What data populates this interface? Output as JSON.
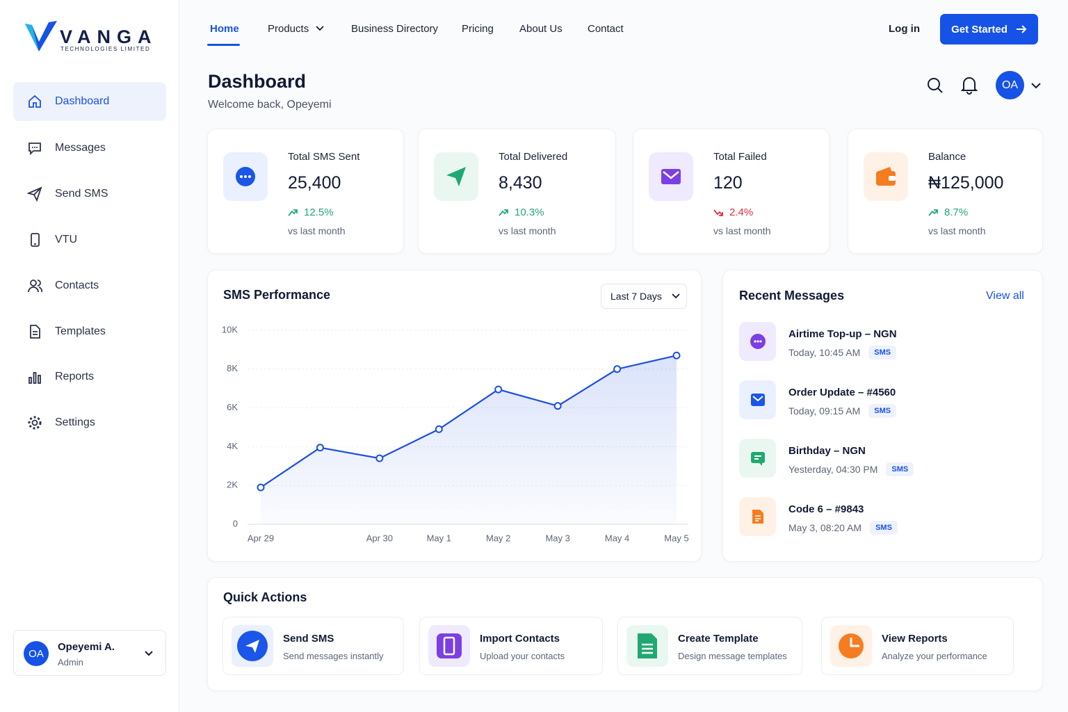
{
  "brand": {
    "name": "VANGA",
    "tagline": "TECHNOLOGIES LIMITED"
  },
  "nav": {
    "links": [
      "Home",
      "Products",
      "Business Directory",
      "Pricing",
      "About Us",
      "Contact"
    ],
    "login": "Log in",
    "cta": "Get Started"
  },
  "sidebar": {
    "items": [
      "Dashboard",
      "Messages",
      "Send SMS",
      "VTU",
      "Contacts",
      "Templates",
      "Reports",
      "Settings"
    ],
    "user": {
      "initials": "OA",
      "name": "Opeyemi A.",
      "role": "Admin"
    }
  },
  "header": {
    "title": "Dashboard",
    "subtitle": "Welcome back, Opeyemi",
    "avatar": "OA"
  },
  "stats": [
    {
      "label": "Total SMS Sent",
      "value": "25,400",
      "change": "12.5%",
      "note": "vs last month"
    },
    {
      "label": "Total Delivered",
      "value": "8,430",
      "change": "10.3%",
      "note": "vs last month"
    },
    {
      "label": "Total Failed",
      "value": "120",
      "change": "2.4%",
      "note": "vs last month"
    },
    {
      "label": "Balance",
      "value": "₦125,000",
      "change": "8.7%",
      "note": "vs last month"
    }
  ],
  "chart_data": {
    "type": "line",
    "title": "SMS Performance",
    "filter": "Last 7 Days",
    "color": "#1a4fe0",
    "categories": [
      "Apr 29",
      null,
      "Apr 30",
      "May 1",
      "May 2",
      "May 3",
      "May 4",
      "May 5"
    ],
    "values": [
      1900,
      3950,
      3400,
      4900,
      6950,
      6100,
      8000,
      8700
    ],
    "ylim": [
      0,
      10000
    ],
    "yticks": [
      0,
      {
        "value": 2000,
        "label": "2K"
      },
      {
        "value": 4000,
        "label": "4K"
      },
      {
        "value": 6000,
        "label": "6K"
      },
      {
        "value": 8000,
        "label": "8K"
      },
      {
        "value": 10000,
        "label": "10K"
      }
    ],
    "grid": true
  },
  "recent": {
    "title": "Recent Messages",
    "view_all": "View all",
    "items": [
      {
        "title": "Airtime Top-up – NGN",
        "time": "Today, 10:45 AM",
        "tag": "SMS"
      },
      {
        "title": "Order Update – #4560",
        "time": "Today, 09:15 AM",
        "tag": "SMS"
      },
      {
        "title": "Birthday – NGN",
        "time": "Yesterday, 04:30 PM",
        "tag": "SMS"
      },
      {
        "title": "Code 6 – #9843",
        "time": "May 3, 08:20 AM",
        "tag": "SMS"
      }
    ]
  },
  "quick_actions": {
    "title": "Quick Actions",
    "items": [
      {
        "title": "Send SMS",
        "desc": "Send messages instantly"
      },
      {
        "title": "Import Contacts",
        "desc": "Upload your contacts"
      },
      {
        "title": "Create Template",
        "desc": "Design message templates"
      },
      {
        "title": "View Reports",
        "desc": "Analyze your performance"
      }
    ]
  }
}
